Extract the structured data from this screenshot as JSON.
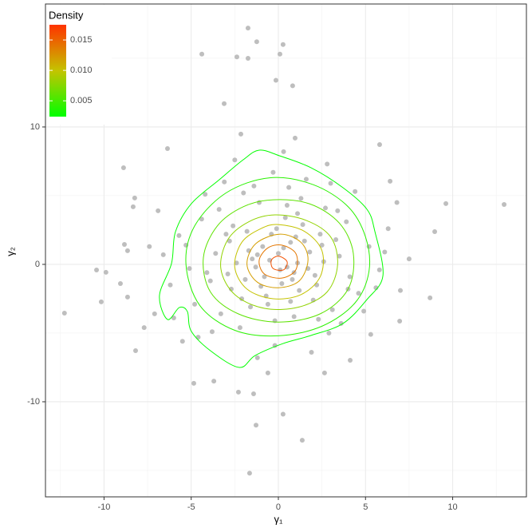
{
  "chart_data": {
    "type": "scatter",
    "xlabel": "γ₁",
    "ylabel": "γ₂",
    "xlim": [
      -13.36,
      14.23
    ],
    "ylim": [
      -16.92,
      18.95
    ],
    "xticks": [
      -10,
      -5,
      0,
      5,
      10
    ],
    "yticks": [
      -10,
      0,
      10
    ],
    "x_minor_grid": [
      -12.5,
      -7.5,
      -2.5,
      2.5,
      7.5,
      12.5
    ],
    "y_minor_grid": [
      -15,
      -5,
      5,
      15
    ],
    "grid": true,
    "points": {
      "color": "#bebebe",
      "x": [
        0.3,
        -1.5,
        2.1,
        -0.7,
        1.4,
        -2.8,
        3.5,
        -3.9,
        0.9,
        -1.1,
        4.6,
        -4.4,
        2.7,
        -2.2,
        0.1,
        1.8,
        -0.4,
        -1.9,
        3.1,
        -3.3,
        5.2,
        -5.1,
        0.6,
        -0.2,
        2.4,
        -2.6,
        1.2,
        -1.3,
        0.4,
        3.9,
        -3.6,
        4.1,
        -0.9,
        1.1,
        -2.0,
        2.9,
        -4.8,
        5.8,
        -5.7,
        0.7,
        -1.6,
        2.2,
        -2.9,
        3.3,
        -0.3,
        1.6,
        -3.1,
        4.4,
        -4.2,
        -6.2,
        6.3,
        -6.6,
        1.9,
        -1.2,
        3.6,
        -3.8,
        0.0,
        0.8,
        -0.8,
        1.5,
        -1.8,
        2.6,
        -2.4,
        0.5,
        -0.5,
        1.0,
        -1.0,
        2.0,
        -2.1,
        0.2,
        -7.1,
        7.0,
        -6.9,
        6.8,
        -5.5,
        5.3,
        -2.5,
        2.8,
        0.3,
        -0.6,
        -7.7,
        -7.4,
        7.5,
        4.9,
        -4.6,
        3.0,
        -3.4,
        1.3,
        -1.4,
        2.3,
        -0.1,
        0.7,
        -0.6,
        1.7,
        -1.7,
        0.9,
        -1.2,
        2.5,
        -2.7,
        1.1,
        -3.0,
        4.0,
        -4.1,
        3.4,
        -0.2,
        0.5,
        -5.3,
        5.6,
        -6.0,
        6.1,
        -1.74,
        -1.24,
        0.27,
        -4.39,
        -2.38,
        -1.74,
        0.09,
        -0.14,
        0.82,
        -3.11,
        -12.27,
        12.95,
        9.61,
        8.97,
        8.7,
        5.81,
        6.96,
        -10.43,
        -9.89,
        -10.16,
        -8.83,
        -8.88,
        -4.85,
        -1.65,
        -1.28,
        0.27,
        1.37,
        -2.29,
        -1.42,
        -3.7,
        2.65,
        4.12,
        -9.06,
        -8.19,
        -8.65,
        6.41,
        -6.36,
        -8.65,
        -8.33,
        -8.24,
        0.96,
        -2.15
      ],
      "y": [
        1.2,
        0.4,
        -0.8,
        -2.3,
        2.9,
        1.7,
        0.6,
        -1.2,
        -3.8,
        4.5,
        -2.1,
        3.3,
        4.1,
        -4.6,
        -0.4,
        0.9,
        2.2,
        -1.1,
        -3.3,
        -3.6,
        1.3,
        -0.3,
        5.6,
        -5.9,
        2.2,
        2.8,
        -1.9,
        -0.2,
        3.4,
        3.1,
        0.8,
        -0.9,
        1.3,
        0.1,
        5.2,
        -5.0,
        -2.9,
        -0.4,
        2.1,
        -2.7,
        -3.1,
        -1.5,
        -0.7,
        1.8,
        6.7,
        6.2,
        6.0,
        5.3,
        5.1,
        -1.5,
        2.6,
        0.7,
        -6.4,
        -6.8,
        -4.3,
        -4.9,
        0.8,
        -1.1,
        -0.9,
        1.7,
        2.4,
        0.2,
        0.1,
        -0.2,
        0.3,
        2.0,
        -1.6,
        -2.6,
        -2.5,
        -1.4,
        -3.6,
        -1.9,
        3.9,
        4.5,
        -5.6,
        -5.1,
        7.6,
        7.3,
        8.2,
        -7.9,
        -4.6,
        1.3,
        0.4,
        -3.4,
        -5.3,
        5.9,
        4.0,
        4.8,
        5.7,
        -4.0,
        2.6,
        1.6,
        -2.9,
        -0.3,
        1.0,
        -0.6,
        0.7,
        1.4,
        -1.8,
        3.7,
        2.2,
        -1.8,
        -0.6,
        3.9,
        -4.1,
        4.3,
        1.4,
        -1.7,
        -3.9,
        0.9,
        17.2,
        16.2,
        16.0,
        15.3,
        15.1,
        15.0,
        15.3,
        13.4,
        13.0,
        11.7,
        -3.55,
        4.36,
        4.42,
        2.38,
        -2.44,
        8.72,
        -4.13,
        -0.41,
        -0.58,
        -2.73,
        1.45,
        7.03,
        -8.66,
        -15.2,
        -11.7,
        -10.9,
        -12.8,
        -9.3,
        -9.42,
        -8.5,
        -7.9,
        -6.98,
        -1.4,
        -6.28,
        -2.38,
        6.05,
        8.43,
        0.99,
        4.19,
        4.83,
        9.19,
        9.48
      ]
    },
    "contours": [
      {
        "level": 0.0025,
        "x": [
          -1.1,
          0.05,
          1.88,
          3.71,
          5.08,
          5.54,
          6.0,
          5.08,
          3.71,
          1.88,
          0.27,
          -1.33,
          -2.24,
          -3.84,
          -4.99,
          -5.22,
          -5.68,
          -6.36,
          -6.82,
          -6.13,
          -5.9,
          -4.99,
          -3.39,
          -2.01
        ],
        "y": [
          8.31,
          7.91,
          7.03,
          5.58,
          4.01,
          2.38,
          -0.81,
          -2.56,
          -4.3,
          -5.17,
          -5.76,
          -6.63,
          -7.5,
          -6.34,
          -4.88,
          -3.43,
          -3.14,
          -4.01,
          -2.27,
          0.06,
          2.38,
          4.42,
          6.16,
          7.62
        ]
      },
      {
        "level": 0.004,
        "x": [
          -0.5,
          2,
          4,
          5,
          5.2,
          4.4,
          2.5,
          0,
          -2.5,
          -4.5,
          -5.3,
          -4.8,
          -3
        ],
        "y": [
          6.3,
          5.8,
          4.2,
          2,
          -0.5,
          -2.8,
          -4.5,
          -5.2,
          -4.8,
          -3,
          0,
          2.8,
          5.2
        ]
      },
      {
        "level": 0.006,
        "x": [
          -0.3,
          1.8,
          3.5,
          4.3,
          4,
          2.4,
          0,
          -2.3,
          -3.9,
          -4.3,
          -3.5,
          -2
        ],
        "y": [
          4.7,
          4.4,
          3,
          0.8,
          -1.8,
          -3.6,
          -4.2,
          -3.6,
          -2,
          0.5,
          2.8,
          4.2
        ]
      },
      {
        "level": 0.008,
        "x": [
          -0.2,
          1.6,
          3,
          3.4,
          2.8,
          1.2,
          -0.8,
          -2.5,
          -3.3,
          -2.9,
          -1.7
        ],
        "y": [
          3.6,
          3.2,
          2,
          0,
          -2,
          -3.1,
          -3.2,
          -2.2,
          -0.3,
          1.8,
          3.1
        ]
      },
      {
        "level": 0.01,
        "x": [
          0,
          1.5,
          2.5,
          2.4,
          1.3,
          -0.3,
          -1.8,
          -2.5,
          -2.1,
          -1
        ],
        "y": [
          2.9,
          2.4,
          1,
          -0.9,
          -2.2,
          -2.5,
          -1.8,
          -0.2,
          1.6,
          2.6
        ]
      },
      {
        "level": 0.012,
        "x": [
          0.1,
          1.3,
          1.7,
          1.2,
          0,
          -1.2,
          -1.8,
          -1.3
        ],
        "y": [
          2.2,
          1.6,
          0.3,
          -1.2,
          -1.7,
          -1.3,
          0,
          1.5
        ]
      },
      {
        "level": 0.014,
        "x": [
          0.2,
          1,
          1,
          0.2,
          -0.8,
          -1.1,
          -0.6
        ],
        "y": [
          1.4,
          0.8,
          -0.4,
          -1,
          -0.7,
          0.3,
          1.2
        ]
      },
      {
        "level": 0.016,
        "x": [
          0,
          0.5,
          0.3,
          -0.3,
          -0.4
        ],
        "y": [
          0.6,
          0.2,
          -0.4,
          -0.3,
          0.3
        ]
      }
    ],
    "colorbar": {
      "title": "Density",
      "lim": [
        0.0024,
        0.0175
      ],
      "ticks": [
        0.005,
        {
          "value": 0.01,
          "label": "0.010"
        },
        0.015
      ],
      "colors": [
        "#00ff00",
        "#c4c400",
        "#ff3300"
      ],
      "position": "top-left"
    }
  }
}
